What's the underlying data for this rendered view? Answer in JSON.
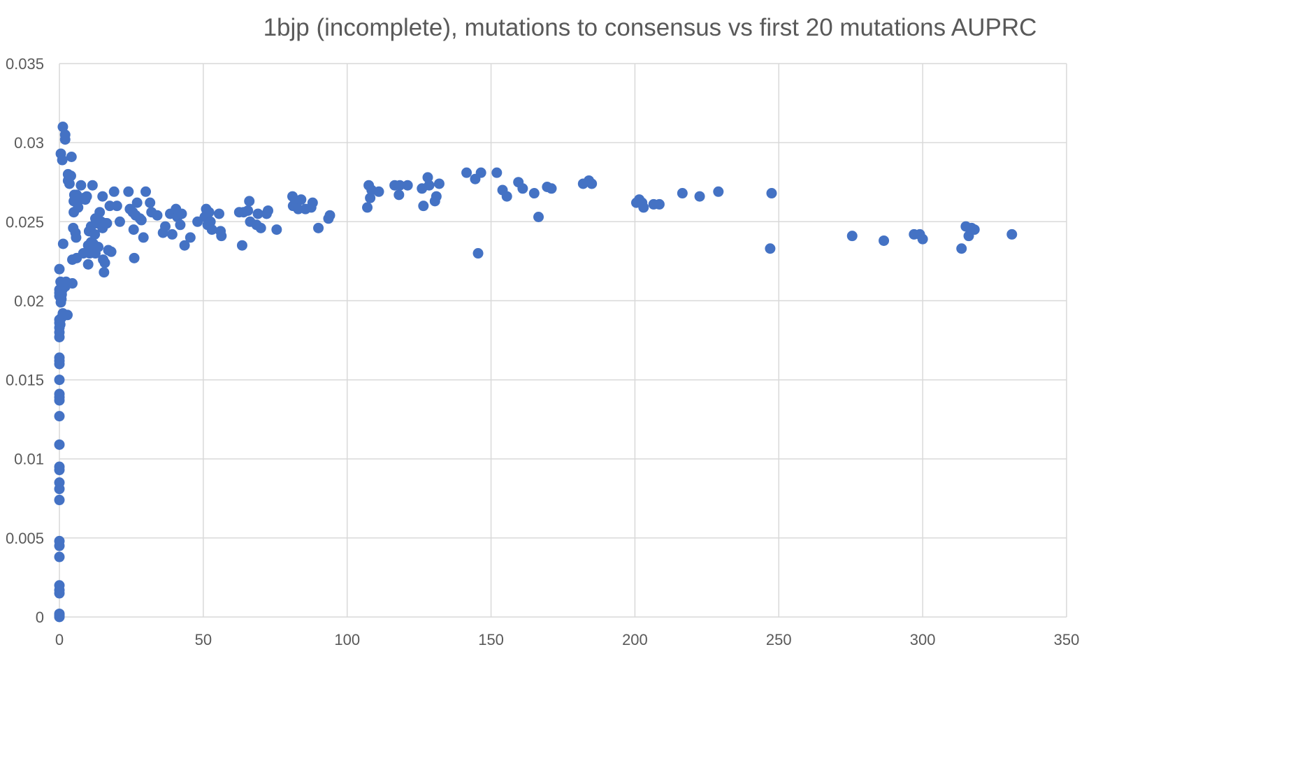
{
  "chart_data": {
    "type": "scatter",
    "title": "1bjp (incomplete), mutations to consensus vs first 20 mutations AUPRC",
    "xlabel": "",
    "ylabel": "",
    "xlim": [
      0,
      350
    ],
    "ylim": [
      0,
      0.035
    ],
    "xticks": [
      0,
      50,
      100,
      150,
      200,
      250,
      300,
      350
    ],
    "xtick_labels": [
      "0",
      "50",
      "100",
      "150",
      "200",
      "250",
      "300",
      "350"
    ],
    "yticks": [
      0,
      0.005,
      0.01,
      0.015,
      0.02,
      0.025,
      0.03,
      0.035
    ],
    "ytick_labels": [
      "0",
      "0.005",
      "0.01",
      "0.015",
      "0.02",
      "0.025",
      "0.03",
      "0.035"
    ],
    "grid": true,
    "legend": "none",
    "marker_color": "#4472C4",
    "points": [
      [
        0,
        0
      ],
      [
        0,
        0.0001
      ],
      [
        0,
        0.0002
      ],
      [
        0,
        0.0015
      ],
      [
        0,
        0.0017
      ],
      [
        0,
        0.002
      ],
      [
        0,
        0.0038
      ],
      [
        0,
        0.0045
      ],
      [
        0,
        0.0048
      ],
      [
        0,
        0.0074
      ],
      [
        0,
        0.0081
      ],
      [
        0,
        0.0085
      ],
      [
        0,
        0.0093
      ],
      [
        0,
        0.0095
      ],
      [
        0,
        0.0109
      ],
      [
        0,
        0.0127
      ],
      [
        0,
        0.0137
      ],
      [
        0,
        0.0139
      ],
      [
        0,
        0.0141
      ],
      [
        0,
        0.015
      ],
      [
        0,
        0.016
      ],
      [
        0,
        0.0162
      ],
      [
        0,
        0.0164
      ],
      [
        0,
        0.0177
      ],
      [
        0,
        0.018
      ],
      [
        0,
        0.0183
      ],
      [
        0,
        0.0186
      ],
      [
        0,
        0.0188
      ],
      [
        0,
        0.0203
      ],
      [
        0,
        0.0205
      ],
      [
        0,
        0.0207
      ],
      [
        0,
        0.022
      ],
      [
        0.3,
        0.0185
      ],
      [
        0.4,
        0.0212
      ],
      [
        0.5,
        0.0293
      ],
      [
        0.5,
        0.0199
      ],
      [
        0.6,
        0.0189
      ],
      [
        0.7,
        0.0208
      ],
      [
        0.7,
        0.0201
      ],
      [
        0.8,
        0.0204
      ],
      [
        1,
        0.0289
      ],
      [
        1,
        0.0207
      ],
      [
        1,
        0.021
      ],
      [
        1.2,
        0.031
      ],
      [
        1.2,
        0.0192
      ],
      [
        1.3,
        0.0236
      ],
      [
        1.5,
        0.0211
      ],
      [
        2,
        0.0302
      ],
      [
        2,
        0.0305
      ],
      [
        2,
        0.0209
      ],
      [
        2.3,
        0.0212
      ],
      [
        2.8,
        0.0191
      ],
      [
        3,
        0.028
      ],
      [
        3,
        0.0276
      ],
      [
        3.5,
        0.0274
      ],
      [
        4,
        0.0279
      ],
      [
        4.2,
        0.0291
      ],
      [
        4.5,
        0.0211
      ],
      [
        4.5,
        0.0226
      ],
      [
        4.8,
        0.0246
      ],
      [
        5,
        0.0256
      ],
      [
        5,
        0.0263
      ],
      [
        5.2,
        0.0267
      ],
      [
        5.6,
        0.0243
      ],
      [
        5.8,
        0.024
      ],
      [
        6,
        0.0227
      ],
      [
        6,
        0.0267
      ],
      [
        6.5,
        0.0263
      ],
      [
        6.5,
        0.0259
      ],
      [
        7,
        0.0264
      ],
      [
        7.5,
        0.0273
      ],
      [
        8.3,
        0.023
      ],
      [
        8.5,
        0.0265
      ],
      [
        9,
        0.0264
      ],
      [
        9.5,
        0.0266
      ],
      [
        10,
        0.0235
      ],
      [
        10,
        0.0223
      ],
      [
        10.3,
        0.0244
      ],
      [
        10.5,
        0.023
      ],
      [
        11,
        0.0247
      ],
      [
        11,
        0.0237
      ],
      [
        11.5,
        0.0273
      ],
      [
        11.8,
        0.0236
      ],
      [
        12,
        0.0231
      ],
      [
        12.3,
        0.0242
      ],
      [
        12.5,
        0.0252
      ],
      [
        12.5,
        0.023
      ],
      [
        13,
        0.0234
      ],
      [
        13.2,
        0.0249
      ],
      [
        13.5,
        0.0234
      ],
      [
        14,
        0.0256
      ],
      [
        14.5,
        0.025
      ],
      [
        15,
        0.0246
      ],
      [
        15,
        0.0266
      ],
      [
        15.2,
        0.0226
      ],
      [
        15.5,
        0.0218
      ],
      [
        15.8,
        0.0224
      ],
      [
        16,
        0.0249
      ],
      [
        16.5,
        0.0249
      ],
      [
        17,
        0.0232
      ],
      [
        17.5,
        0.026
      ],
      [
        18,
        0.0231
      ],
      [
        19,
        0.0269
      ],
      [
        20,
        0.026
      ],
      [
        21,
        0.025
      ],
      [
        24,
        0.0269
      ],
      [
        24.5,
        0.0258
      ],
      [
        25.5,
        0.0256
      ],
      [
        25.8,
        0.0245
      ],
      [
        26,
        0.0227
      ],
      [
        26.5,
        0.0254
      ],
      [
        27,
        0.0262
      ],
      [
        28,
        0.0252
      ],
      [
        28.5,
        0.0251
      ],
      [
        29.2,
        0.024
      ],
      [
        30,
        0.0269
      ],
      [
        31.5,
        0.0262
      ],
      [
        32,
        0.0256
      ],
      [
        34,
        0.0254
      ],
      [
        36,
        0.0243
      ],
      [
        36.8,
        0.0247
      ],
      [
        38.5,
        0.0255
      ],
      [
        39.2,
        0.0242
      ],
      [
        40,
        0.0255
      ],
      [
        40.5,
        0.0258
      ],
      [
        41,
        0.0253
      ],
      [
        42,
        0.0248
      ],
      [
        42.5,
        0.0255
      ],
      [
        43.5,
        0.0235
      ],
      [
        45.5,
        0.024
      ],
      [
        48,
        0.025
      ],
      [
        50.5,
        0.0253
      ],
      [
        51,
        0.0258
      ],
      [
        51.5,
        0.0248
      ],
      [
        52,
        0.0256
      ],
      [
        52.5,
        0.025
      ],
      [
        53,
        0.0245
      ],
      [
        55.5,
        0.0255
      ],
      [
        56,
        0.0244
      ],
      [
        56.3,
        0.0241
      ],
      [
        62.5,
        0.0256
      ],
      [
        63.5,
        0.0235
      ],
      [
        64,
        0.0256
      ],
      [
        65.5,
        0.0257
      ],
      [
        66,
        0.0263
      ],
      [
        66.3,
        0.025
      ],
      [
        68.5,
        0.0248
      ],
      [
        69,
        0.0255
      ],
      [
        70,
        0.0246
      ],
      [
        72,
        0.0255
      ],
      [
        72.5,
        0.0257
      ],
      [
        75.5,
        0.0245
      ],
      [
        81,
        0.0266
      ],
      [
        81.2,
        0.026
      ],
      [
        82,
        0.0263
      ],
      [
        83,
        0.0258
      ],
      [
        84,
        0.0264
      ],
      [
        85.5,
        0.0258
      ],
      [
        87.5,
        0.0259
      ],
      [
        88,
        0.0262
      ],
      [
        90,
        0.0246
      ],
      [
        93.5,
        0.0252
      ],
      [
        94,
        0.0254
      ],
      [
        107,
        0.0259
      ],
      [
        107.5,
        0.0273
      ],
      [
        108,
        0.0265
      ],
      [
        108.5,
        0.027
      ],
      [
        111,
        0.0269
      ],
      [
        116.5,
        0.0273
      ],
      [
        118,
        0.0267
      ],
      [
        118.3,
        0.0273
      ],
      [
        121,
        0.0273
      ],
      [
        126,
        0.0271
      ],
      [
        126.5,
        0.026
      ],
      [
        128,
        0.0278
      ],
      [
        128.5,
        0.0273
      ],
      [
        130.5,
        0.0263
      ],
      [
        131,
        0.0266
      ],
      [
        132,
        0.0274
      ],
      [
        141.5,
        0.0281
      ],
      [
        144.5,
        0.0277
      ],
      [
        145.5,
        0.023
      ],
      [
        146.5,
        0.0281
      ],
      [
        152,
        0.0281
      ],
      [
        154,
        0.027
      ],
      [
        155.5,
        0.0266
      ],
      [
        159.5,
        0.0275
      ],
      [
        161,
        0.0271
      ],
      [
        165,
        0.0268
      ],
      [
        166.5,
        0.0253
      ],
      [
        169.5,
        0.0272
      ],
      [
        171,
        0.0271
      ],
      [
        182,
        0.0274
      ],
      [
        184,
        0.0276
      ],
      [
        185,
        0.0274
      ],
      [
        200.5,
        0.0262
      ],
      [
        201.5,
        0.0264
      ],
      [
        202.5,
        0.0262
      ],
      [
        203,
        0.0259
      ],
      [
        206.5,
        0.0261
      ],
      [
        208.5,
        0.0261
      ],
      [
        216.5,
        0.0268
      ],
      [
        222.5,
        0.0266
      ],
      [
        229,
        0.0269
      ],
      [
        247,
        0.0233
      ],
      [
        247.5,
        0.0268
      ],
      [
        275.5,
        0.0241
      ],
      [
        286.5,
        0.0238
      ],
      [
        297,
        0.0242
      ],
      [
        299,
        0.0242
      ],
      [
        300,
        0.0239
      ],
      [
        313.5,
        0.0233
      ],
      [
        315,
        0.0247
      ],
      [
        316,
        0.0241
      ],
      [
        317,
        0.0246
      ],
      [
        318,
        0.0245
      ],
      [
        331,
        0.0242
      ]
    ]
  }
}
